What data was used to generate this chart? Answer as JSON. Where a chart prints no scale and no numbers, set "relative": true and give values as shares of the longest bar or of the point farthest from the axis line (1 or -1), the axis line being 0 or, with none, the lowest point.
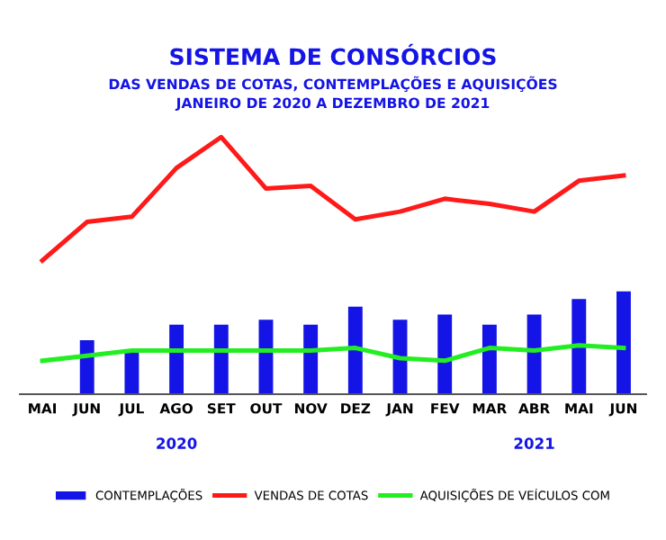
{
  "chart_data": {
    "type": "bar",
    "title": "SISTEMA DE CONSÓRCIOS",
    "subtitle": "DAS VENDAS DE COTAS, CONTEMPLAÇÕES E AQUISIÇÕES\nJANEIRO DE 2020 A DEZEMBRO DE 2021",
    "relative": true,
    "categories": [
      "MAI",
      "JUN",
      "JUL",
      "AGO",
      "SET",
      "OUT",
      "NOV",
      "DEZ",
      "JAN",
      "FEV",
      "MAR",
      "ABR",
      "MAI",
      "JUN"
    ],
    "series": [
      {
        "name": "CONTEMPLAÇÕES",
        "color": "#1414e6",
        "values": [
          null,
          0.21,
          0.17,
          0.27,
          0.27,
          0.29,
          0.27,
          0.34,
          0.29,
          0.31,
          0.27,
          0.31,
          0.37,
          0.4
        ]
      },
      {
        "name": "VENDAS DE COTAS",
        "type": "line",
        "color": "#ff1a1a",
        "values": [
          0.52,
          0.67,
          0.69,
          0.88,
          1,
          0.8,
          0.81,
          0.68,
          0.71,
          0.76,
          0.74,
          0.71,
          0.83,
          0.85
        ]
      },
      {
        "name": "AQUISIÇÕES DE VEÍCULOS COM",
        "type": "line",
        "color": "#22ee22",
        "values": [
          0.13,
          0.15,
          0.17,
          0.17,
          0.17,
          0.17,
          0.17,
          0.18,
          0.14,
          0.13,
          0.18,
          0.17,
          0.19,
          0.18
        ]
      }
    ],
    "annotations": [
      "2020",
      "2021"
    ],
    "legend": "bottom",
    "grid": false
  }
}
